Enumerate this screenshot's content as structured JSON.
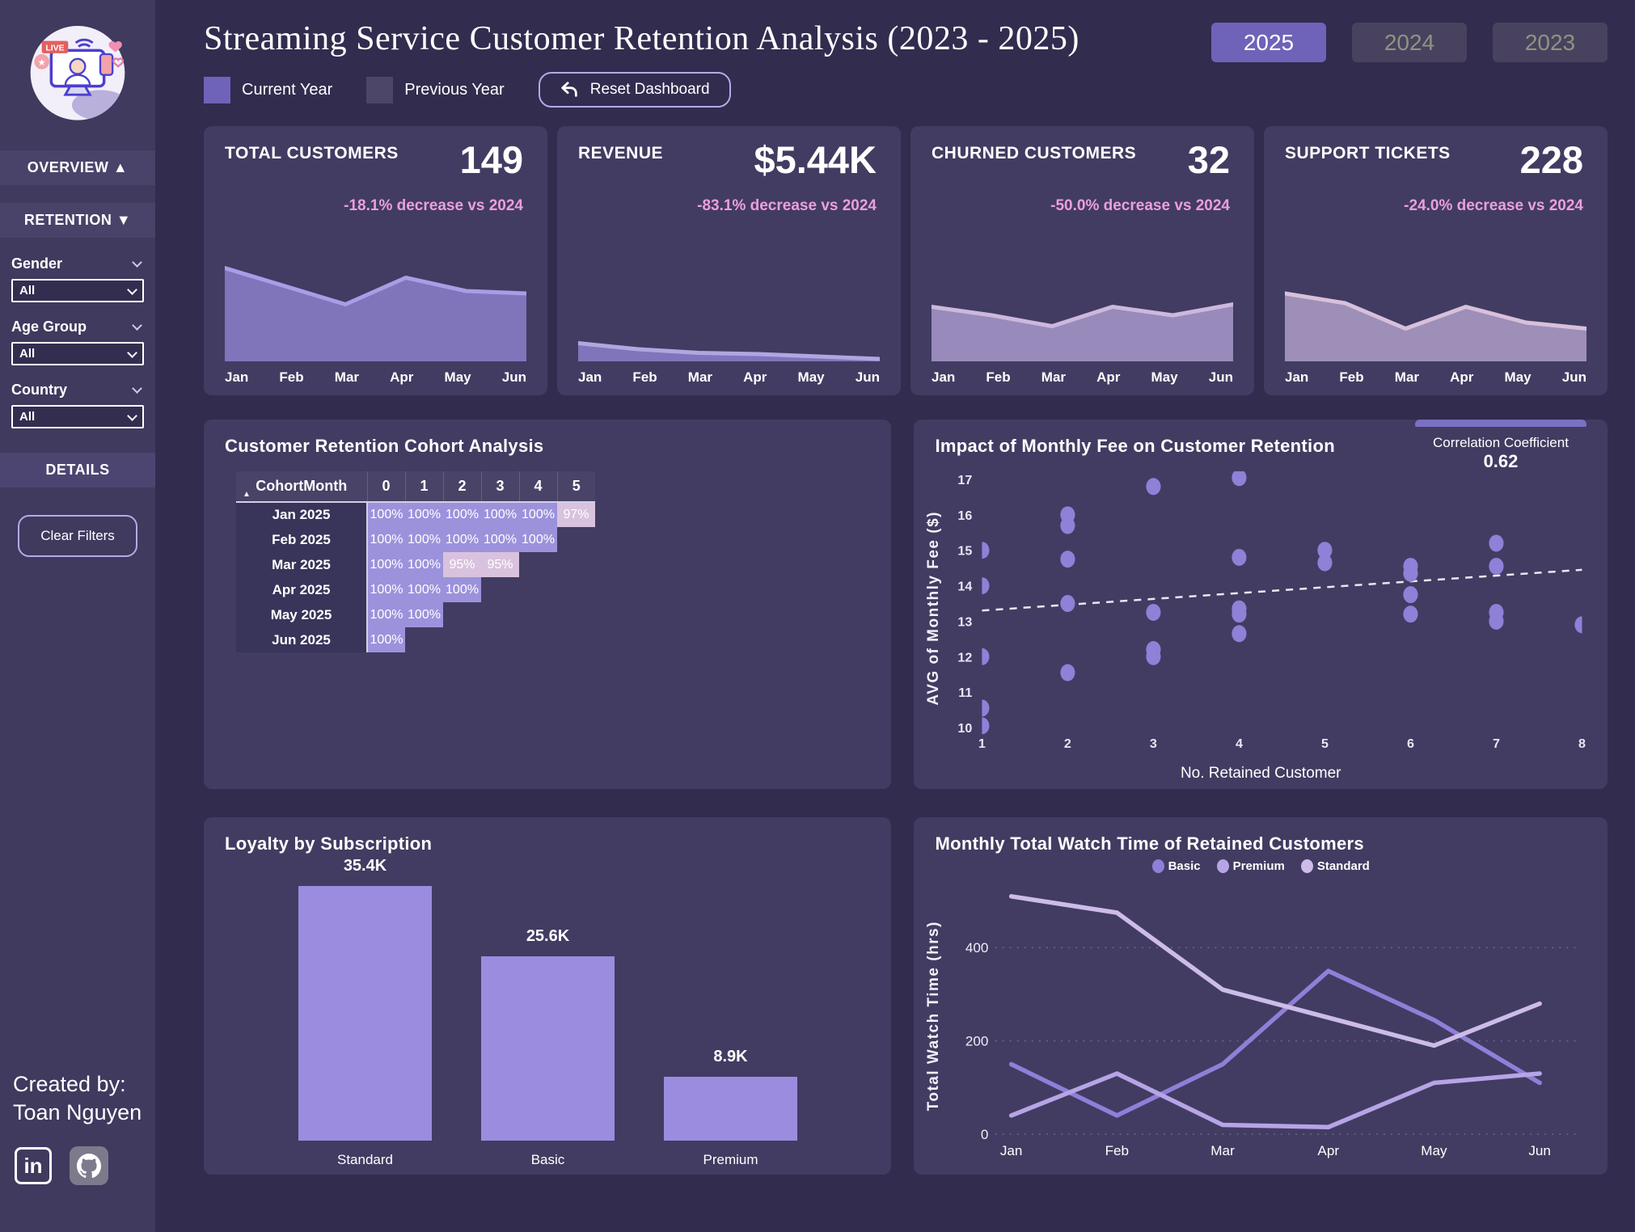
{
  "months": [
    "Jan",
    "Feb",
    "Mar",
    "Apr",
    "May",
    "Jun"
  ],
  "colors": {
    "page_bg": "#322c4f",
    "sidebar_bg": "#3f3a5e",
    "card_bg": "#423c62",
    "accent": "#6e63b8",
    "accent_light": "#b7a9e8",
    "delta_pink": "#ed9fd9",
    "cohort_full": "#9c92dc",
    "cohort_partial": "#d9c2dd",
    "scatter_dot": "#8f80d8",
    "bar_fill": "#9b8ce0"
  },
  "sidebar": {
    "nav": [
      {
        "label": "OVERVIEW",
        "arrow": "▲"
      },
      {
        "label": "RETENTION",
        "arrow": "▼"
      }
    ],
    "filters": [
      {
        "label": "Gender",
        "value": "All"
      },
      {
        "label": "Age Group",
        "value": "All"
      },
      {
        "label": "Country",
        "value": "All"
      }
    ],
    "details_label": "DETAILS",
    "clear_filters_label": "Clear Filters",
    "credit": [
      "Created by:",
      "Toan Nguyen"
    ]
  },
  "header": {
    "title": "Streaming Service Customer Retention Analysis (2023 - 2025)",
    "legend": [
      {
        "label": "Current Year",
        "color": "#6e63b8"
      },
      {
        "label": "Previous Year",
        "color": "#4c4668"
      }
    ],
    "reset_label": "Reset Dashboard",
    "year_buttons": [
      {
        "label": "2025",
        "active": true
      },
      {
        "label": "2024",
        "active": false
      },
      {
        "label": "2023",
        "active": false
      }
    ]
  },
  "kpis": [
    {
      "title": "TOTAL CUSTOMERS",
      "value": "149",
      "delta": "-18.1% decrease vs 2024"
    },
    {
      "title": "REVENUE",
      "value": "$5.44K",
      "delta": "-83.1% decrease vs 2024"
    },
    {
      "title": "CHURNED CUSTOMERS",
      "value": "32",
      "delta": "-50.0% decrease vs 2024"
    },
    {
      "title": "SUPPORT TICKETS",
      "value": "228",
      "delta": "-24.0% decrease vs 2024"
    }
  ],
  "chart_data": [
    {
      "id": "spark-total-customers",
      "type": "area",
      "x": [
        "Jan",
        "Feb",
        "Mar",
        "Apr",
        "May",
        "Jun"
      ],
      "values": [
        77,
        62,
        47,
        69,
        58,
        56
      ],
      "ylim": [
        0,
        100
      ],
      "stroke": "#a89de6",
      "fill": "#8478bf"
    },
    {
      "id": "spark-revenue",
      "type": "area",
      "x": [
        "Jan",
        "Feb",
        "Mar",
        "Apr",
        "May",
        "Jun"
      ],
      "values": [
        15,
        10,
        7,
        6,
        4,
        2
      ],
      "ylim": [
        0,
        100
      ],
      "stroke": "#b1a6e0",
      "fill": "#8478bf"
    },
    {
      "id": "spark-churned",
      "type": "area",
      "x": [
        "Jan",
        "Feb",
        "Mar",
        "Apr",
        "May",
        "Jun"
      ],
      "values": [
        45,
        38,
        29,
        45,
        38,
        47
      ],
      "ylim": [
        0,
        100
      ],
      "stroke": "#cdb8dd",
      "fill": "#9d8fc0"
    },
    {
      "id": "spark-support",
      "type": "area",
      "x": [
        "Jan",
        "Feb",
        "Mar",
        "Apr",
        "May",
        "Jun"
      ],
      "values": [
        56,
        48,
        27,
        45,
        32,
        27
      ],
      "ylim": [
        0,
        100
      ],
      "stroke": "#d8c0dc",
      "fill": "#a294bc"
    },
    {
      "id": "cohort",
      "type": "table",
      "title": "Customer Retention Cohort Analysis",
      "row_header": "CohortMonth",
      "columns": [
        "0",
        "1",
        "2",
        "3",
        "4",
        "5"
      ],
      "value_suffix": "%",
      "rows": [
        {
          "label": "Jan 2025",
          "values": [
            100,
            100,
            100,
            100,
            100,
            97
          ]
        },
        {
          "label": "Feb 2025",
          "values": [
            100,
            100,
            100,
            100,
            100,
            null
          ]
        },
        {
          "label": "Mar 2025",
          "values": [
            100,
            100,
            95,
            95,
            null,
            null
          ]
        },
        {
          "label": "Apr 2025",
          "values": [
            100,
            100,
            100,
            null,
            null,
            null
          ]
        },
        {
          "label": "May 2025",
          "values": [
            100,
            100,
            null,
            null,
            null,
            null
          ]
        },
        {
          "label": "Jun 2025",
          "values": [
            100,
            null,
            null,
            null,
            null,
            null
          ]
        }
      ]
    },
    {
      "id": "fee-scatter",
      "type": "scatter",
      "title": "Impact of Monthly Fee on Customer Retention",
      "xlabel": "No. Retained Customer",
      "ylabel": "AVG of Monthly Fee ($)",
      "xlim": [
        1,
        8
      ],
      "ylim": [
        10,
        17
      ],
      "xticks": [
        1,
        2,
        3,
        4,
        5,
        6,
        7,
        8
      ],
      "yticks": [
        10,
        11,
        12,
        13,
        14,
        15,
        16,
        17
      ],
      "correlation_label": "Correlation Coefficient",
      "correlation_value": "0.62",
      "points": [
        [
          1,
          15
        ],
        [
          1,
          14
        ],
        [
          1,
          12
        ],
        [
          1,
          10.55
        ],
        [
          1,
          10.05
        ],
        [
          2,
          16
        ],
        [
          2,
          15.7
        ],
        [
          2,
          14.75
        ],
        [
          2,
          13.5
        ],
        [
          2,
          11.55
        ],
        [
          3,
          16.8
        ],
        [
          3,
          13.25
        ],
        [
          3,
          12.2
        ],
        [
          3,
          12
        ],
        [
          4,
          17.05
        ],
        [
          4,
          14.8
        ],
        [
          4,
          13.35
        ],
        [
          4,
          13.2
        ],
        [
          4,
          12.65
        ],
        [
          5,
          15
        ],
        [
          5,
          14.65
        ],
        [
          6,
          14.55
        ],
        [
          6,
          14.35
        ],
        [
          6,
          13.75
        ],
        [
          6,
          13.2
        ],
        [
          7,
          15.2
        ],
        [
          7,
          14.55
        ],
        [
          7,
          13.25
        ],
        [
          7,
          13
        ],
        [
          8,
          12.9
        ]
      ],
      "trendline": {
        "x1": 1,
        "y1": 13.3,
        "x2": 8,
        "y2": 14.45
      }
    },
    {
      "id": "loyalty-bars",
      "type": "bar",
      "title": "Loyalty by Subscription",
      "categories": [
        "Standard",
        "Basic",
        "Premium"
      ],
      "values": [
        35400,
        25600,
        8900
      ],
      "labels": [
        "35.4K",
        "25.6K",
        "8.9K"
      ],
      "ylim": [
        0,
        36000
      ]
    },
    {
      "id": "watch-lines",
      "type": "line",
      "title": "Monthly Total Watch Time of Retained Customers",
      "ylabel": "Total Watch Time (hrs)",
      "categories": [
        "Jan",
        "Feb",
        "Mar",
        "Apr",
        "May",
        "Jun"
      ],
      "yticks": [
        0,
        200,
        400
      ],
      "ylim": [
        0,
        520
      ],
      "series": [
        {
          "name": "Basic",
          "color": "#8f7fd9",
          "values": [
            150,
            40,
            150,
            350,
            245,
            110
          ]
        },
        {
          "name": "Premium",
          "color": "#b7a4e6",
          "values": [
            40,
            130,
            20,
            15,
            110,
            130
          ]
        },
        {
          "name": "Standard",
          "color": "#cdbbe9",
          "values": [
            510,
            475,
            310,
            250,
            190,
            280
          ]
        }
      ]
    }
  ]
}
